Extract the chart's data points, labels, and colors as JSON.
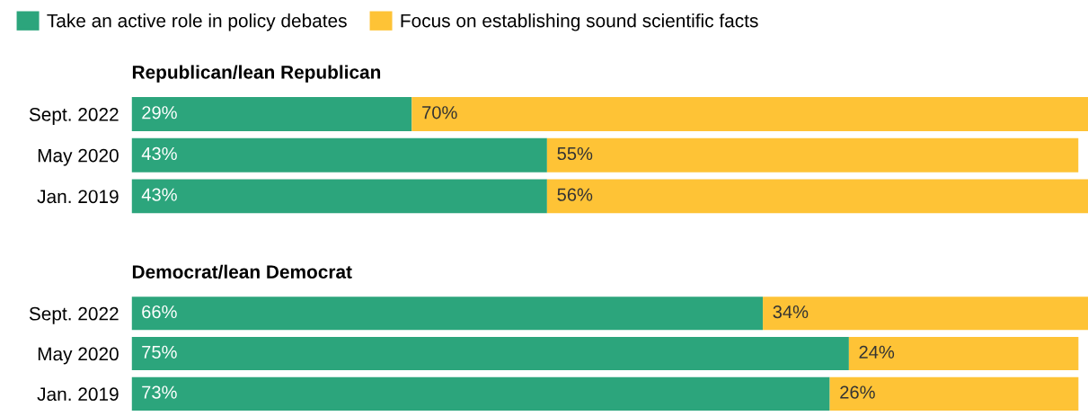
{
  "chart_data": [
    {
      "type": "bar",
      "title": "Republican/lean Republican",
      "orientation": "horizontal",
      "stacked": true,
      "legend": "top left",
      "tick_labels": "y",
      "categories": [
        "Sept. 2022",
        "May 2020",
        "Jan. 2019"
      ],
      "series": [
        {
          "name": "Take an active role in policy debates",
          "color": "#2ca57c",
          "values": [
            29,
            43,
            43
          ],
          "value_labels": [
            "29%",
            "43%",
            "43%"
          ]
        },
        {
          "name": "Focus on establishing sound scientific facts",
          "color": "#fec336",
          "values": [
            70,
            55,
            56
          ],
          "value_labels": [
            "70%",
            "55%",
            "56%"
          ]
        }
      ]
    },
    {
      "type": "bar",
      "title": "Democrat/lean Democrat",
      "orientation": "horizontal",
      "stacked": true,
      "tick_labels": "y",
      "categories": [
        "Sept. 2022",
        "May 2020",
        "Jan. 2019"
      ],
      "series": [
        {
          "color": "#2ca57c",
          "values": [
            66,
            75,
            73
          ],
          "value_labels": [
            "66%",
            "75%",
            "73%"
          ]
        },
        {
          "color": "#fec336",
          "values": [
            34,
            24,
            26
          ],
          "value_labels": [
            "34%",
            "24%",
            "26%"
          ]
        }
      ]
    }
  ]
}
